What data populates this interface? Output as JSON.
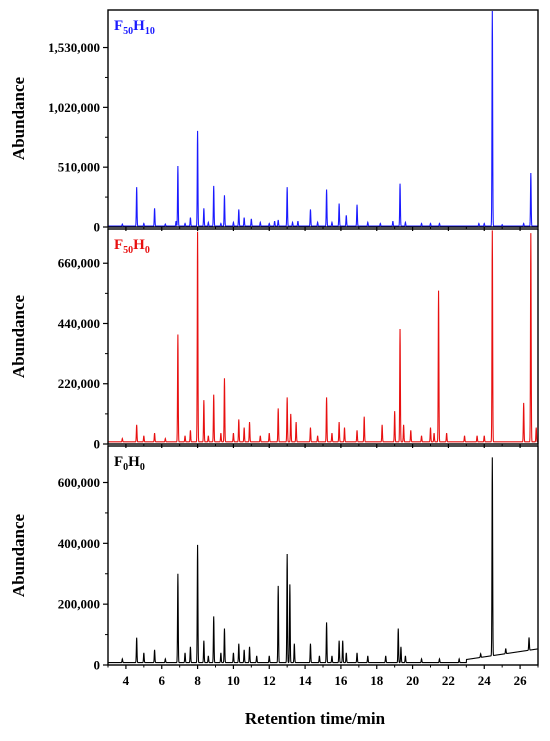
{
  "chart_data": [
    {
      "type": "line",
      "panel_label": {
        "base1": "F",
        "sub1": "50",
        "base2": "H",
        "sub2": "10"
      },
      "color": "#1a1aff",
      "ylabel": "Abundance",
      "xlabel": "",
      "xlim": [
        3,
        27
      ],
      "ylim": [
        0,
        1850000
      ],
      "y_ticks": [
        0,
        510000,
        1020000,
        1530000
      ],
      "y_tick_labels": [
        "0",
        "510,000",
        "1,020,000",
        "1,530,000"
      ],
      "baseline": 8000,
      "peaks": [
        [
          3.8,
          25000
        ],
        [
          4.6,
          340000
        ],
        [
          5.0,
          30000
        ],
        [
          5.6,
          160000
        ],
        [
          6.2,
          25000
        ],
        [
          6.8,
          50000
        ],
        [
          6.9,
          520000
        ],
        [
          7.3,
          30000
        ],
        [
          7.6,
          80000
        ],
        [
          8.0,
          820000
        ],
        [
          8.35,
          160000
        ],
        [
          8.6,
          40000
        ],
        [
          8.9,
          350000
        ],
        [
          9.3,
          30000
        ],
        [
          9.5,
          270000
        ],
        [
          10.0,
          40000
        ],
        [
          10.3,
          150000
        ],
        [
          10.6,
          80000
        ],
        [
          11.0,
          70000
        ],
        [
          11.5,
          40000
        ],
        [
          12.0,
          30000
        ],
        [
          12.3,
          50000
        ],
        [
          12.5,
          60000
        ],
        [
          13.0,
          340000
        ],
        [
          13.3,
          40000
        ],
        [
          13.6,
          50000
        ],
        [
          14.3,
          150000
        ],
        [
          14.7,
          40000
        ],
        [
          15.2,
          320000
        ],
        [
          15.5,
          40000
        ],
        [
          15.9,
          200000
        ],
        [
          16.3,
          100000
        ],
        [
          16.9,
          190000
        ],
        [
          17.5,
          40000
        ],
        [
          18.2,
          30000
        ],
        [
          18.9,
          50000
        ],
        [
          19.3,
          370000
        ],
        [
          19.6,
          40000
        ],
        [
          20.5,
          30000
        ],
        [
          21.0,
          30000
        ],
        [
          21.5,
          30000
        ],
        [
          23.7,
          30000
        ],
        [
          24.0,
          30000
        ],
        [
          24.45,
          1870000
        ],
        [
          25.0,
          20000
        ],
        [
          26.2,
          30000
        ],
        [
          26.6,
          460000
        ]
      ]
    },
    {
      "type": "line",
      "panel_label": {
        "base1": "F",
        "sub1": "50",
        "base2": "H",
        "sub2": "0"
      },
      "color": "#e81010",
      "ylabel": "Abundance",
      "xlabel": "",
      "xlim": [
        3,
        27
      ],
      "ylim": [
        0,
        785000
      ],
      "y_ticks": [
        0,
        220000,
        440000,
        660000
      ],
      "y_tick_labels": [
        "0",
        "220,000",
        "440,000",
        "660,000"
      ],
      "baseline": 8000,
      "peaks": [
        [
          3.8,
          20000
        ],
        [
          4.6,
          70000
        ],
        [
          5.0,
          30000
        ],
        [
          5.6,
          40000
        ],
        [
          6.2,
          20000
        ],
        [
          6.9,
          400000
        ],
        [
          7.3,
          30000
        ],
        [
          7.6,
          50000
        ],
        [
          8.0,
          775000
        ],
        [
          8.35,
          160000
        ],
        [
          8.6,
          30000
        ],
        [
          8.9,
          180000
        ],
        [
          9.3,
          40000
        ],
        [
          9.5,
          240000
        ],
        [
          10.0,
          40000
        ],
        [
          10.3,
          90000
        ],
        [
          10.6,
          60000
        ],
        [
          10.9,
          80000
        ],
        [
          11.5,
          30000
        ],
        [
          12.0,
          40000
        ],
        [
          12.5,
          130000
        ],
        [
          13.0,
          170000
        ],
        [
          13.2,
          110000
        ],
        [
          13.5,
          80000
        ],
        [
          14.3,
          60000
        ],
        [
          14.7,
          30000
        ],
        [
          15.2,
          170000
        ],
        [
          15.5,
          40000
        ],
        [
          15.9,
          80000
        ],
        [
          16.2,
          60000
        ],
        [
          16.9,
          50000
        ],
        [
          17.3,
          100000
        ],
        [
          18.3,
          70000
        ],
        [
          19.0,
          120000
        ],
        [
          19.3,
          420000
        ],
        [
          19.5,
          70000
        ],
        [
          19.9,
          50000
        ],
        [
          20.5,
          30000
        ],
        [
          21.0,
          60000
        ],
        [
          21.2,
          40000
        ],
        [
          21.45,
          560000
        ],
        [
          21.9,
          40000
        ],
        [
          22.9,
          30000
        ],
        [
          23.6,
          30000
        ],
        [
          24.0,
          30000
        ],
        [
          24.45,
          780000
        ],
        [
          26.2,
          150000
        ],
        [
          26.6,
          770000
        ],
        [
          26.9,
          60000
        ]
      ]
    },
    {
      "type": "line",
      "panel_label": {
        "base1": "F",
        "sub1": "0",
        "base2": "H",
        "sub2": "0"
      },
      "color": "#000000",
      "ylabel": "Abundance",
      "xlabel": "Retention time/min",
      "xlim": [
        3,
        27
      ],
      "ylim": [
        0,
        720000
      ],
      "y_ticks": [
        0,
        200000,
        400000,
        600000
      ],
      "y_tick_labels": [
        "0",
        "200,000",
        "400,000",
        "600,000"
      ],
      "x_ticks": [
        4,
        6,
        8,
        10,
        12,
        14,
        16,
        18,
        20,
        22,
        24,
        26
      ],
      "x_tick_labels": [
        "4",
        "6",
        "8",
        "10",
        "12",
        "14",
        "16",
        "18",
        "20",
        "22",
        "24",
        "26"
      ],
      "baseline": 8000,
      "peaks": [
        [
          3.8,
          20000
        ],
        [
          4.6,
          90000
        ],
        [
          5.0,
          40000
        ],
        [
          5.6,
          50000
        ],
        [
          6.2,
          20000
        ],
        [
          6.9,
          300000
        ],
        [
          7.3,
          40000
        ],
        [
          7.6,
          60000
        ],
        [
          8.0,
          395000
        ],
        [
          8.35,
          80000
        ],
        [
          8.6,
          30000
        ],
        [
          8.9,
          160000
        ],
        [
          9.3,
          40000
        ],
        [
          9.5,
          120000
        ],
        [
          10.0,
          40000
        ],
        [
          10.3,
          70000
        ],
        [
          10.6,
          50000
        ],
        [
          10.9,
          60000
        ],
        [
          11.3,
          30000
        ],
        [
          12.0,
          30000
        ],
        [
          12.5,
          260000
        ],
        [
          13.0,
          365000
        ],
        [
          13.15,
          265000
        ],
        [
          13.4,
          70000
        ],
        [
          14.3,
          70000
        ],
        [
          14.8,
          30000
        ],
        [
          15.2,
          140000
        ],
        [
          15.5,
          30000
        ],
        [
          15.9,
          80000
        ],
        [
          16.1,
          80000
        ],
        [
          16.3,
          40000
        ],
        [
          16.9,
          40000
        ],
        [
          17.5,
          30000
        ],
        [
          18.5,
          30000
        ],
        [
          19.2,
          120000
        ],
        [
          19.35,
          60000
        ],
        [
          19.6,
          30000
        ],
        [
          20.5,
          20000
        ],
        [
          21.5,
          20000
        ],
        [
          22.6,
          20000
        ],
        [
          23.8,
          20000
        ],
        [
          24.45,
          660000
        ],
        [
          25.2,
          25000
        ],
        [
          26.5,
          50000
        ]
      ],
      "drift": [
        [
          23.0,
          10000
        ],
        [
          27.0,
          45000
        ]
      ]
    }
  ]
}
